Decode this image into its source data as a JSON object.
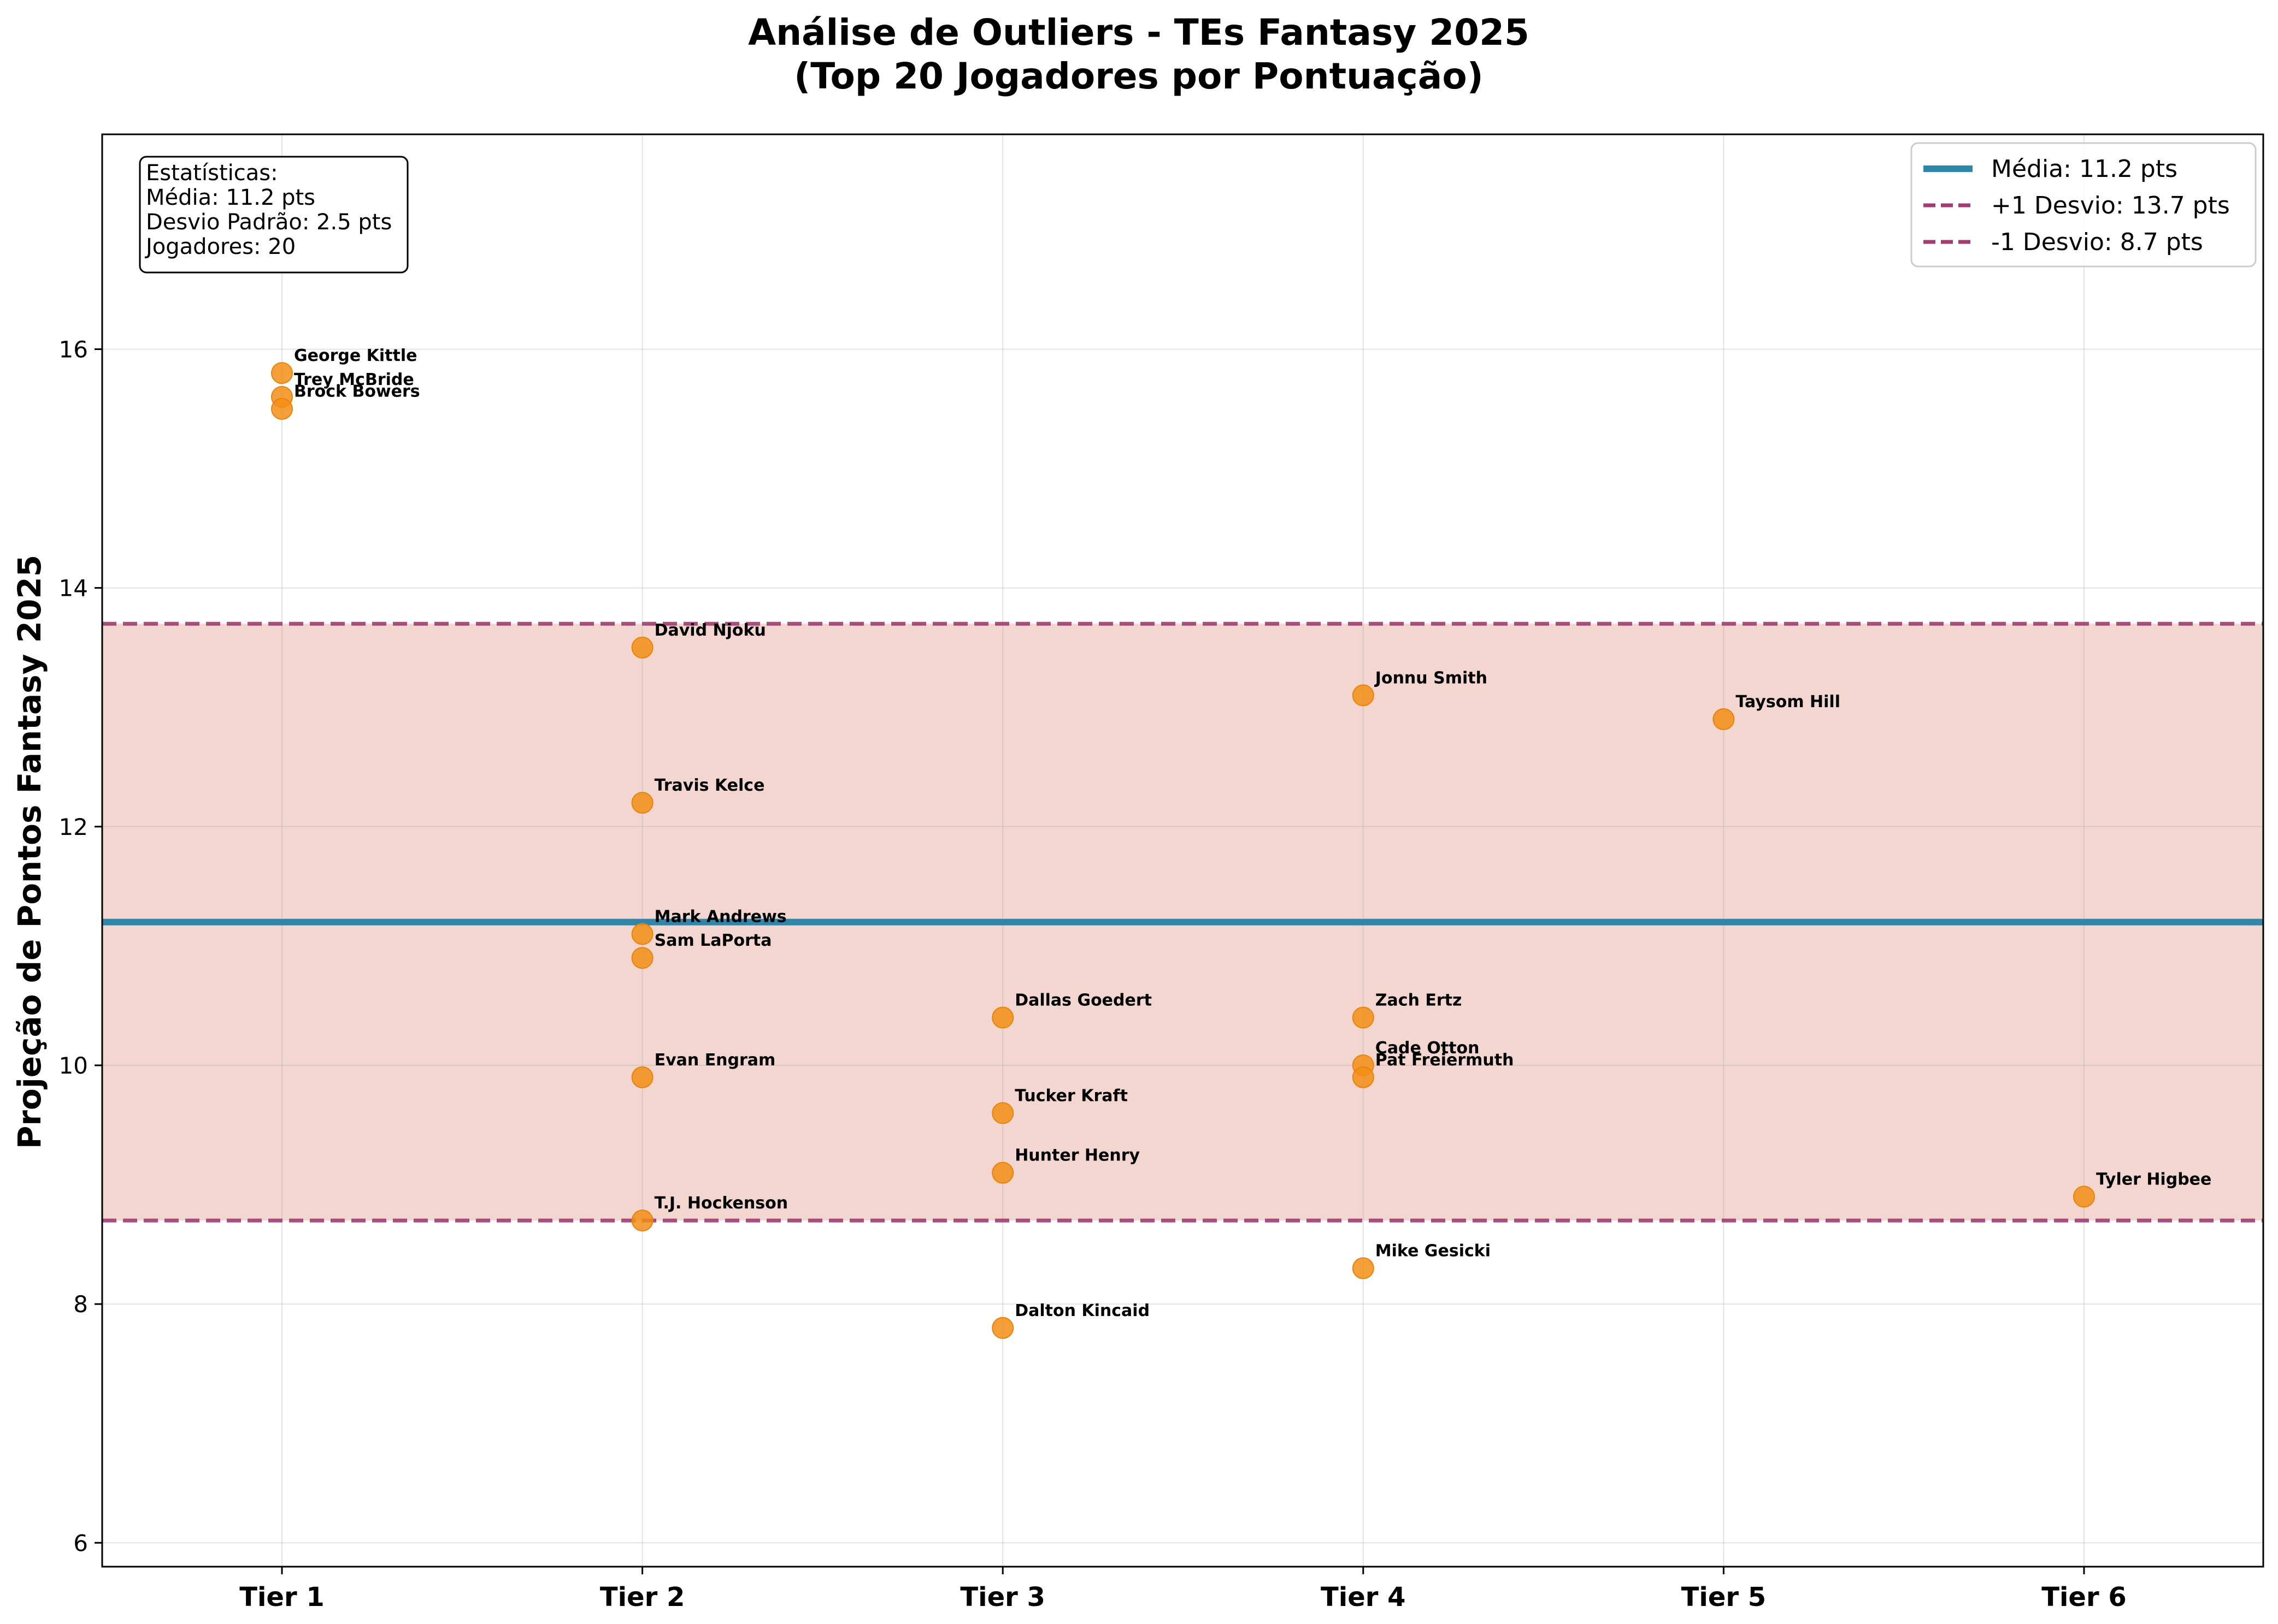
{
  "chart_data": {
    "type": "scatter",
    "title_line1": "Análise de Outliers - TEs Fantasy 2025",
    "title_line2": "(Top 20 Jogadores por Pontuação)",
    "ylabel": "Projeção de Pontos Fantasy 2025",
    "xlabel": "",
    "categories": [
      "Tier 1",
      "Tier 2",
      "Tier 3",
      "Tier 4",
      "Tier 5",
      "Tier 6"
    ],
    "ylim": [
      5.8,
      17.8
    ],
    "yticks": [
      6,
      8,
      10,
      12,
      14,
      16
    ],
    "grid": true,
    "mean": 11.2,
    "plus_one_sd": 13.7,
    "minus_one_sd": 8.7,
    "colors": {
      "points": "#F28E16",
      "mean_line": "#2E86AB",
      "sd_lines": "#A23B72",
      "band": "#E8B4A8"
    },
    "points": [
      {
        "name": "George Kittle",
        "tier": 1,
        "value": 15.8
      },
      {
        "name": "Trey McBride",
        "tier": 1,
        "value": 15.6
      },
      {
        "name": "Brock Bowers",
        "tier": 1,
        "value": 15.5
      },
      {
        "name": "David Njoku",
        "tier": 2,
        "value": 13.5
      },
      {
        "name": "Travis Kelce",
        "tier": 2,
        "value": 12.2
      },
      {
        "name": "Mark Andrews",
        "tier": 2,
        "value": 11.1
      },
      {
        "name": "Sam LaPorta",
        "tier": 2,
        "value": 10.9
      },
      {
        "name": "Evan Engram",
        "tier": 2,
        "value": 9.9
      },
      {
        "name": "T.J. Hockenson",
        "tier": 2,
        "value": 8.7
      },
      {
        "name": "Dallas Goedert",
        "tier": 3,
        "value": 10.4
      },
      {
        "name": "Tucker Kraft",
        "tier": 3,
        "value": 9.6
      },
      {
        "name": "Hunter Henry",
        "tier": 3,
        "value": 9.1
      },
      {
        "name": "Dalton Kincaid",
        "tier": 3,
        "value": 7.8
      },
      {
        "name": "Jonnu Smith",
        "tier": 4,
        "value": 13.1
      },
      {
        "name": "Zach Ertz",
        "tier": 4,
        "value": 10.4
      },
      {
        "name": "Cade Otton",
        "tier": 4,
        "value": 10.0
      },
      {
        "name": "Pat Freiermuth",
        "tier": 4,
        "value": 9.9
      },
      {
        "name": "Mike Gesicki",
        "tier": 4,
        "value": 8.3
      },
      {
        "name": "Taysom Hill",
        "tier": 5,
        "value": 12.9
      },
      {
        "name": "Tyler Higbee",
        "tier": 6,
        "value": 8.9
      }
    ],
    "legend": {
      "placement": "top-right",
      "entries": [
        "Média: 11.2 pts",
        "+1 Desvio: 13.7 pts",
        "-1 Desvio: 8.7 pts"
      ]
    },
    "stats_box": {
      "placement": "top-left",
      "lines": [
        "Estatísticas:",
        "Média: 11.2 pts",
        "Desvio Padrão: 2.5 pts",
        "Jogadores: 20"
      ]
    }
  }
}
